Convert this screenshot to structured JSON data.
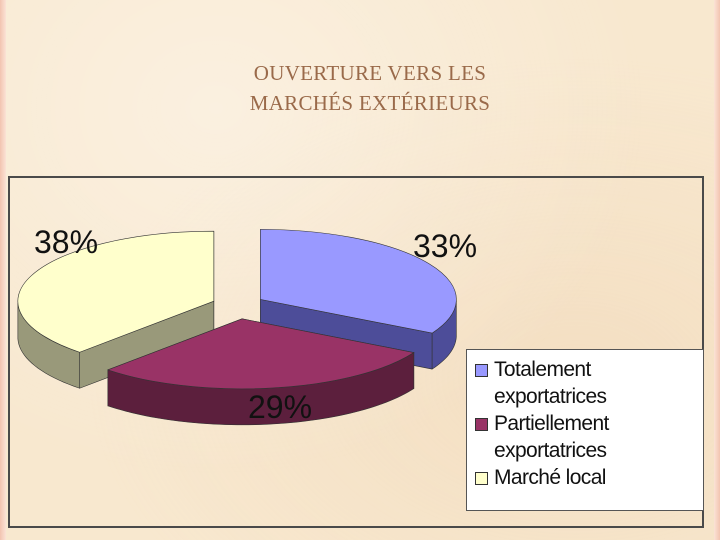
{
  "slide": {
    "title_line1": "OUVERTURE VERS LES",
    "title_line2": "MARCHÉS EXTÉRIEURS"
  },
  "colors": {
    "background": "#f8e8cf",
    "title": "#9a6a4a"
  },
  "chart_data": {
    "type": "pie",
    "style": "3d-exploded",
    "legend_position": "bottom-right",
    "slices": [
      {
        "label": "Totalement exportatrices",
        "value": 33,
        "display": "33%",
        "color_top": "#9999ff",
        "color_side": "#4d4d99"
      },
      {
        "label": "Partiellement exportatrices",
        "value": 29,
        "display": "29%",
        "color_top": "#993366",
        "color_side": "#5c1f3d"
      },
      {
        "label": "Marché local",
        "value": 38,
        "display": "38%",
        "color_top": "#ffffcc",
        "color_side": "#99997a"
      }
    ]
  }
}
